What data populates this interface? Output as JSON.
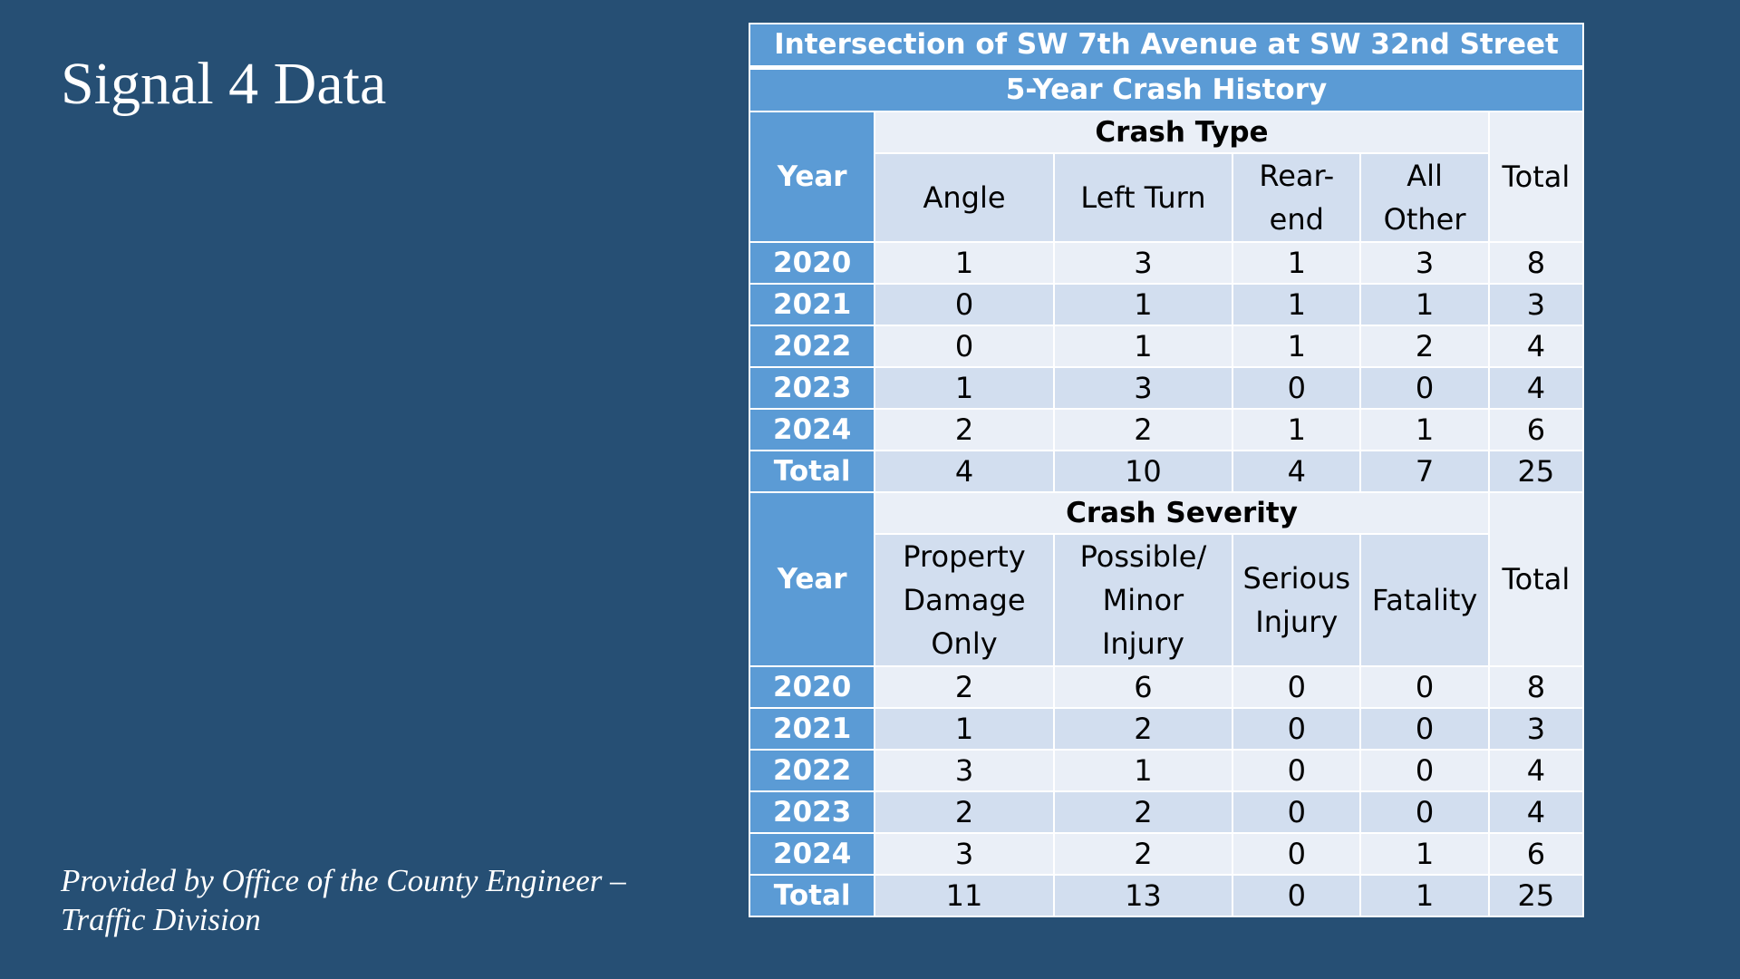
{
  "slide": {
    "title": "Signal 4 Data",
    "source_line1": "Provided by Office of the County Engineer –",
    "source_line2": "Traffic Division"
  },
  "table": {
    "title": "Intersection of SW 7th Avenue at SW 32nd Street",
    "subtitle": "5-Year Crash History",
    "crash_type": {
      "group_label": "Crash Type",
      "year_label": "Year",
      "total_label": "Total",
      "columns": [
        {
          "line1": "Angle",
          "line2": ""
        },
        {
          "line1": "Left Turn",
          "line2": ""
        },
        {
          "line1": "Rear-",
          "line2": "end"
        },
        {
          "line1": "All",
          "line2": "Other"
        }
      ],
      "rows": [
        {
          "year": "2020",
          "values": [
            "1",
            "3",
            "1",
            "3"
          ],
          "total": "8"
        },
        {
          "year": "2021",
          "values": [
            "0",
            "1",
            "1",
            "1"
          ],
          "total": "3"
        },
        {
          "year": "2022",
          "values": [
            "0",
            "1",
            "1",
            "2"
          ],
          "total": "4"
        },
        {
          "year": "2023",
          "values": [
            "1",
            "3",
            "0",
            "0"
          ],
          "total": "4"
        },
        {
          "year": "2024",
          "values": [
            "2",
            "2",
            "1",
            "1"
          ],
          "total": "6"
        },
        {
          "year": "Total",
          "values": [
            "4",
            "10",
            "4",
            "7"
          ],
          "total": "25"
        }
      ]
    },
    "crash_severity": {
      "group_label": "Crash Severity",
      "year_label": "Year",
      "total_label": "Total",
      "columns": [
        {
          "line1": "Property",
          "line2": "Damage",
          "line3": "Only"
        },
        {
          "line1": "Possible/",
          "line2": "Minor",
          "line3": "Injury"
        },
        {
          "line1": "Serious",
          "line2": "Injury",
          "line3": ""
        },
        {
          "line1": "Fatality",
          "line2": "",
          "line3": ""
        }
      ],
      "rows": [
        {
          "year": "2020",
          "values": [
            "2",
            "6",
            "0",
            "0"
          ],
          "total": "8"
        },
        {
          "year": "2021",
          "values": [
            "1",
            "2",
            "0",
            "0"
          ],
          "total": "3"
        },
        {
          "year": "2022",
          "values": [
            "3",
            "1",
            "0",
            "0"
          ],
          "total": "4"
        },
        {
          "year": "2023",
          "values": [
            "2",
            "2",
            "0",
            "0"
          ],
          "total": "4"
        },
        {
          "year": "2024",
          "values": [
            "3",
            "2",
            "0",
            "1"
          ],
          "total": "6"
        },
        {
          "year": "Total",
          "values": [
            "11",
            "13",
            "0",
            "1"
          ],
          "total": "25"
        }
      ]
    }
  },
  "colors": {
    "background": "#264f74",
    "header_blue": "#5b9bd5",
    "row_light": "#eaeff7",
    "row_dark": "#d2deef"
  }
}
